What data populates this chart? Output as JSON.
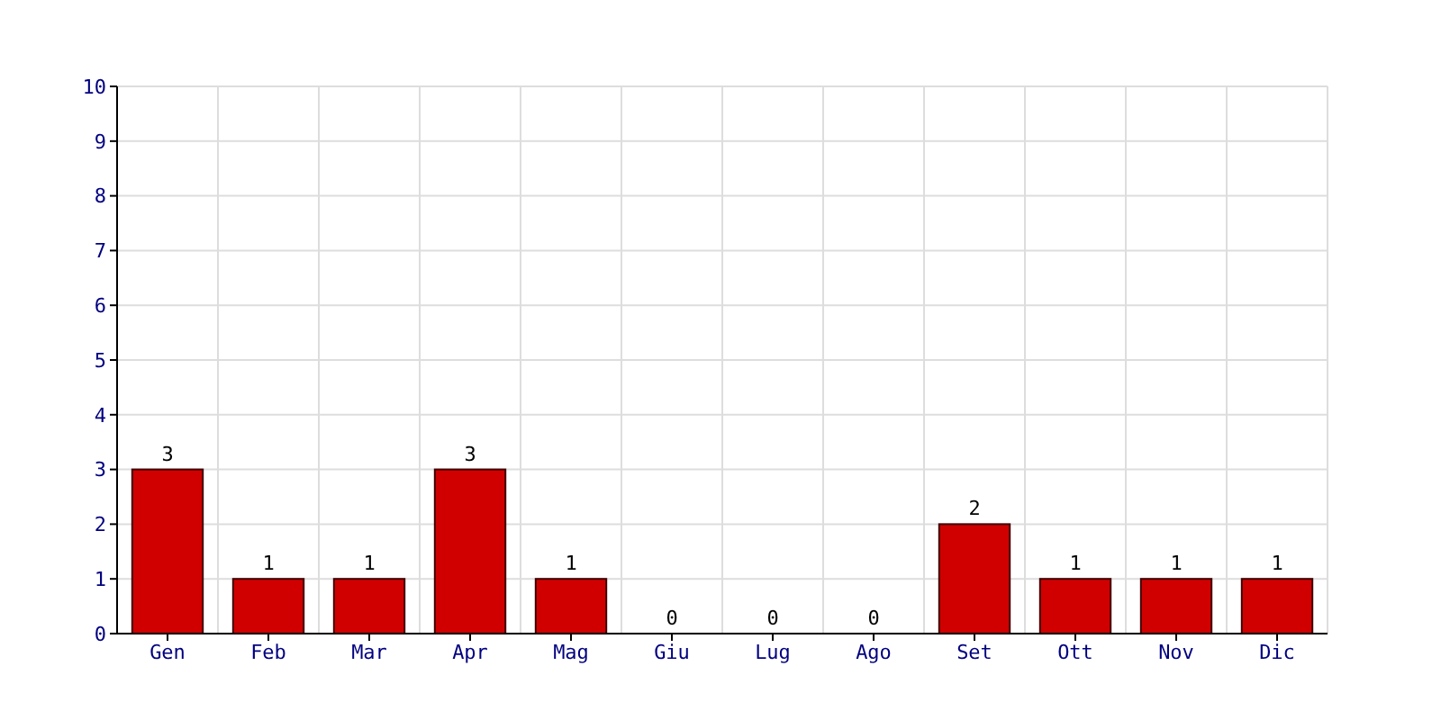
{
  "chart_data": {
    "type": "bar",
    "categories": [
      "Gen",
      "Feb",
      "Mar",
      "Apr",
      "Mag",
      "Giu",
      "Lug",
      "Ago",
      "Set",
      "Ott",
      "Nov",
      "Dic"
    ],
    "values": [
      3,
      1,
      1,
      3,
      1,
      0,
      0,
      0,
      2,
      1,
      1,
      1
    ],
    "color": "#d00000",
    "ylim": [
      0,
      10
    ],
    "yticks": [
      0,
      1,
      2,
      3,
      4,
      5,
      6,
      7,
      8,
      9,
      10
    ],
    "grid": true,
    "data_labels": true
  }
}
